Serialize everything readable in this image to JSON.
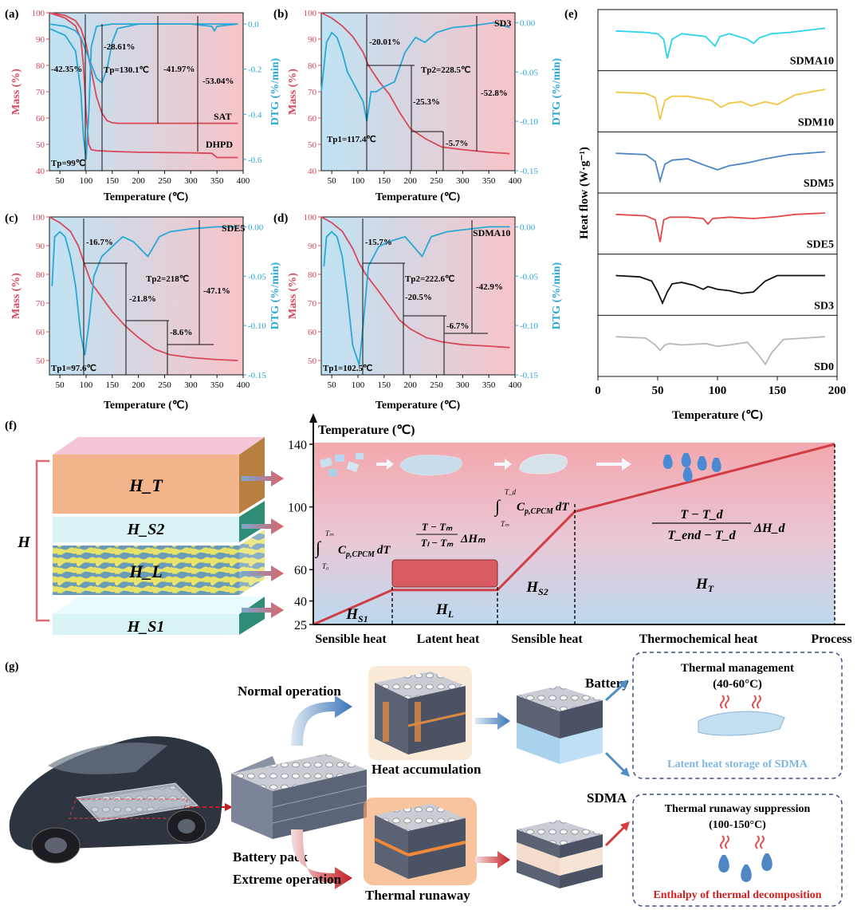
{
  "colors": {
    "mass": "#d9485a",
    "dtg": "#29a8d6",
    "axis": "#111111"
  },
  "chart_data": [
    {
      "panel": "(a)",
      "type": "line",
      "label": "(a)",
      "xlabel": "Temperature (℃)",
      "ylabel": "Mass (%)",
      "y2label": "DTG (%/min)",
      "xlim": [
        30,
        400
      ],
      "ylim": [
        40,
        100
      ],
      "y2lim": [
        -0.65,
        0.05
      ],
      "xticks": [
        "50",
        "100",
        "150",
        "200",
        "250",
        "300",
        "350",
        "400"
      ],
      "yticks": [
        "40",
        "50",
        "60",
        "70",
        "80",
        "90",
        "100"
      ],
      "y2ticks": [
        "0.0",
        "-0.2",
        "-0.4",
        "-0.6"
      ],
      "series": [
        {
          "name": "SAT",
          "axis": "mass",
          "x": [
            30,
            60,
            80,
            90,
            100,
            110,
            120,
            130,
            140,
            150,
            160,
            200,
            250,
            300,
            350,
            390
          ],
          "y": [
            100,
            99,
            97,
            94,
            88,
            78,
            68,
            62,
            59,
            58.2,
            58,
            58,
            58,
            58,
            58,
            58
          ]
        },
        {
          "name": "DHPD",
          "axis": "mass",
          "x": [
            30,
            60,
            80,
            90,
            95,
            100,
            105,
            110,
            120,
            150,
            200,
            300,
            340,
            350,
            390
          ],
          "y": [
            100,
            98,
            95,
            90,
            80,
            62,
            50,
            48,
            47.6,
            47.3,
            47,
            46.8,
            46.6,
            45,
            45
          ]
        },
        {
          "name": "DTG SAT",
          "axis": "dtg",
          "x": [
            30,
            60,
            80,
            90,
            100,
            110,
            120,
            130,
            140,
            150,
            160,
            200,
            300,
            390
          ],
          "y": [
            0,
            -0.01,
            -0.03,
            -0.06,
            -0.12,
            -0.18,
            -0.24,
            -0.26,
            -0.2,
            -0.08,
            -0.02,
            0,
            0,
            0
          ]
        },
        {
          "name": "DTG DHPD",
          "axis": "dtg",
          "x": [
            30,
            60,
            80,
            90,
            95,
            100,
            105,
            110,
            120,
            150,
            300,
            340,
            345,
            350,
            390
          ],
          "y": [
            -0.02,
            -0.05,
            -0.12,
            -0.3,
            -0.5,
            -0.6,
            -0.4,
            -0.1,
            -0.01,
            0,
            0,
            -0.01,
            -0.03,
            -0.01,
            0
          ]
        }
      ],
      "annotations": [
        "-42.35%",
        "-28.61%",
        "Tp=130.1℃",
        "-41.97%",
        "-53.04%",
        "SAT",
        "DHPD",
        "Tp=99℃"
      ]
    },
    {
      "panel": "(b)",
      "type": "line",
      "label": "(b)",
      "xlabel": "Temperature (℃)",
      "ylabel": "Mass (%)",
      "y2label": "DTG (%/min)",
      "xlim": [
        30,
        400
      ],
      "ylim": [
        40,
        100
      ],
      "y2lim": [
        -0.15,
        0.01
      ],
      "xticks": [
        "50",
        "100",
        "150",
        "200",
        "250",
        "300",
        "350",
        "400"
      ],
      "yticks": [
        "40",
        "50",
        "60",
        "70",
        "80",
        "90",
        "100"
      ],
      "y2ticks": [
        "0.00",
        "-0.05",
        "-0.10",
        "-0.15"
      ],
      "series": [
        {
          "name": "SD3 mass",
          "axis": "mass",
          "x": [
            30,
            50,
            70,
            90,
            110,
            120,
            140,
            160,
            180,
            200,
            230,
            260,
            300,
            350,
            390
          ],
          "y": [
            100,
            98,
            95,
            91,
            85,
            80,
            74,
            69,
            62,
            56,
            52,
            49,
            48,
            47,
            46.5
          ]
        },
        {
          "name": "SD3 DTG",
          "axis": "dtg",
          "x": [
            30,
            40,
            50,
            60,
            70,
            80,
            90,
            100,
            110,
            117,
            125,
            135,
            150,
            170,
            190,
            210,
            228,
            250,
            280,
            320,
            360,
            390
          ],
          "y": [
            -0.07,
            -0.02,
            -0.01,
            -0.015,
            -0.03,
            -0.05,
            -0.06,
            -0.07,
            -0.08,
            -0.1,
            -0.07,
            -0.07,
            -0.065,
            -0.06,
            -0.03,
            -0.015,
            -0.02,
            -0.01,
            -0.005,
            -0.003,
            0,
            -0.005
          ]
        }
      ],
      "annotations": [
        "SD3",
        "-20.01%",
        "Tp2=228.5℃",
        "-25.3%",
        "-52.8%",
        "Tp1=117.4℃",
        "-5.7%"
      ]
    },
    {
      "panel": "(c)",
      "type": "line",
      "label": "(c)",
      "xlabel": "Temperature (℃)",
      "ylabel": "Mass (%)",
      "y2label": "DTG (%/min)",
      "xlim": [
        30,
        400
      ],
      "ylim": [
        45,
        100
      ],
      "y2lim": [
        -0.15,
        0.01
      ],
      "xticks": [
        "50",
        "100",
        "150",
        "200",
        "250",
        "300",
        "350",
        "400"
      ],
      "yticks": [
        "50",
        "60",
        "70",
        "80",
        "90",
        "100"
      ],
      "y2ticks": [
        "0.00",
        "-0.05",
        "-0.10",
        "-0.15"
      ],
      "series": [
        {
          "name": "SDE5 mass",
          "axis": "mass",
          "x": [
            30,
            50,
            70,
            85,
            98,
            110,
            130,
            150,
            175,
            200,
            230,
            260,
            300,
            350,
            390
          ],
          "y": [
            100,
            98,
            95,
            90,
            83,
            77,
            72,
            67,
            62,
            58,
            54,
            52,
            51,
            50.3,
            50
          ]
        },
        {
          "name": "SDE5 DTG",
          "axis": "dtg",
          "x": [
            35,
            40,
            50,
            60,
            70,
            80,
            90,
            97.6,
            105,
            115,
            130,
            150,
            170,
            190,
            218,
            240,
            260,
            300,
            350,
            390
          ],
          "y": [
            -0.06,
            -0.01,
            -0.005,
            -0.01,
            -0.03,
            -0.06,
            -0.11,
            -0.13,
            -0.1,
            -0.05,
            -0.03,
            -0.02,
            -0.01,
            -0.015,
            -0.03,
            -0.01,
            -0.005,
            -0.002,
            0,
            0
          ]
        }
      ],
      "annotations": [
        "SDE5",
        "-16.7%",
        "Tp2=218℃",
        "-21.8%",
        "-47.1%",
        "-8.6%",
        "Tp1=97.6℃"
      ]
    },
    {
      "panel": "(d)",
      "type": "line",
      "label": "(d)",
      "xlabel": "Temperature (℃)",
      "ylabel": "Mass (%)",
      "y2label": "DTG (%/min)",
      "xlim": [
        30,
        400
      ],
      "ylim": [
        45,
        100
      ],
      "y2lim": [
        -0.15,
        0.01
      ],
      "xticks": [
        "50",
        "100",
        "150",
        "200",
        "250",
        "300",
        "350",
        "400"
      ],
      "yticks": [
        "50",
        "60",
        "70",
        "80",
        "90",
        "100"
      ],
      "y2ticks": [
        "0.00",
        "-0.05",
        "-0.10",
        "-0.15"
      ],
      "series": [
        {
          "name": "SDMA10 mass",
          "axis": "mass",
          "x": [
            30,
            50,
            70,
            90,
            102,
            115,
            140,
            160,
            180,
            200,
            230,
            260,
            300,
            350,
            390
          ],
          "y": [
            100,
            98,
            95,
            89,
            84,
            80,
            74,
            69,
            64,
            61,
            58,
            56.5,
            55.5,
            55,
            54.5
          ]
        },
        {
          "name": "SDMA10 DTG",
          "axis": "dtg",
          "x": [
            35,
            40,
            50,
            60,
            70,
            80,
            90,
            102.5,
            110,
            120,
            140,
            160,
            190,
            222.6,
            240,
            270,
            300,
            350,
            390
          ],
          "y": [
            -0.04,
            -0.01,
            -0.005,
            -0.01,
            -0.03,
            -0.07,
            -0.12,
            -0.14,
            -0.1,
            -0.04,
            -0.02,
            -0.015,
            -0.01,
            -0.03,
            -0.01,
            -0.005,
            -0.003,
            0,
            0
          ]
        }
      ],
      "annotations": [
        "SDMA10",
        "-15.7%",
        "Tp2=222.6℃",
        "-20.5%",
        "-42.9%",
        "-6.7%",
        "Tp1=102.5℃"
      ]
    },
    {
      "panel": "(e)",
      "type": "line",
      "label": "(e)",
      "xlabel": "Temperature (℃)",
      "ylabel": "Heat flow (W·g⁻¹)",
      "xlim": [
        0,
        200
      ],
      "xticks": [
        "0",
        "50",
        "100",
        "150",
        "200"
      ],
      "series": [
        {
          "name": "SDMA10",
          "color": "#2bd3ee",
          "x": [
            15,
            40,
            50,
            55,
            58,
            62,
            70,
            90,
            98,
            102,
            110,
            125,
            130,
            135,
            145,
            160,
            190
          ],
          "y": [
            0,
            -0.05,
            -0.1,
            -0.3,
            -1,
            -0.3,
            -0.1,
            -0.2,
            -0.55,
            -0.2,
            -0.1,
            -0.3,
            -0.45,
            -0.25,
            -0.1,
            -0.05,
            0.1
          ]
        },
        {
          "name": "SDM10",
          "color": "#f2c644",
          "x": [
            15,
            40,
            48,
            52,
            56,
            62,
            75,
            95,
            103,
            110,
            120,
            128,
            140,
            150,
            165,
            190
          ],
          "y": [
            0,
            -0.05,
            -0.2,
            -1,
            -0.3,
            -0.15,
            -0.15,
            -0.3,
            -0.55,
            -0.4,
            -0.35,
            -0.5,
            -0.35,
            -0.45,
            -0.1,
            0.1
          ]
        },
        {
          "name": "SDM5",
          "color": "#4b86c3",
          "x": [
            15,
            40,
            48,
            52,
            56,
            62,
            75,
            90,
            100,
            110,
            125,
            140,
            160,
            190
          ],
          "y": [
            0,
            -0.05,
            -0.3,
            -1,
            -0.4,
            -0.25,
            -0.2,
            -0.45,
            -0.6,
            -0.45,
            -0.35,
            -0.2,
            -0.05,
            0.05
          ]
        },
        {
          "name": "SDE5",
          "color": "#e24848",
          "x": [
            15,
            40,
            48,
            52,
            55,
            60,
            75,
            88,
            92,
            96,
            110,
            130,
            150,
            165,
            190
          ],
          "y": [
            0,
            -0.05,
            -0.2,
            -1,
            -0.2,
            -0.1,
            -0.1,
            -0.15,
            -0.35,
            -0.15,
            -0.1,
            -0.15,
            -0.08,
            0,
            0.05
          ]
        },
        {
          "name": "SD3",
          "color": "#111111",
          "x": [
            15,
            35,
            45,
            50,
            54,
            58,
            62,
            70,
            80,
            88,
            92,
            100,
            110,
            120,
            130,
            140,
            150,
            190
          ],
          "y": [
            0,
            -0.05,
            -0.2,
            -0.6,
            -1,
            -0.6,
            -0.3,
            -0.25,
            -0.35,
            -0.5,
            -0.4,
            -0.5,
            -0.55,
            -0.65,
            -0.6,
            -0.2,
            0,
            0
          ]
        },
        {
          "name": "SD0",
          "color": "#b8b8b8",
          "x": [
            15,
            40,
            48,
            52,
            56,
            60,
            70,
            90,
            100,
            110,
            125,
            130,
            135,
            140,
            145,
            155,
            190
          ],
          "y": [
            0,
            -0.05,
            -0.3,
            -0.5,
            -0.3,
            -0.25,
            -0.3,
            -0.25,
            -0.35,
            -0.3,
            -0.2,
            -0.45,
            -0.7,
            -1,
            -0.6,
            -0.1,
            0
          ]
        }
      ]
    },
    {
      "panel": "(f)",
      "type": "line",
      "label": "(f)",
      "ylabel": "Temperature (℃)",
      "yticks": [
        "25",
        "40",
        "60",
        "100",
        "140"
      ],
      "x_categories": [
        "Sensible heat",
        "Latent heat",
        "Sensible heat",
        "Thermochemical heat",
        "Process"
      ],
      "x": [
        0,
        1,
        2,
        3,
        6.4
      ],
      "y": [
        25,
        47,
        47,
        97,
        140
      ],
      "regions": [
        "H_S1",
        "H_L",
        "H_S2",
        "H_T"
      ],
      "equations": [
        "∫_{T0}^{Tm} C_{p,CPCM} dT",
        "(T−Tm)/(Tl−Tm) ΔHm",
        "∫_{Tm}^{Td} C_{p,CPCM} dT",
        "(T−Td)/(Tend−Td) ΔHd"
      ]
    }
  ],
  "panel_f": {
    "H": "H",
    "layers": [
      "H_T",
      "H_S2",
      "H_L",
      "H_S1"
    ],
    "regions": {
      "hs1": "H",
      "hs1_sub": "S1",
      "hl": "H",
      "hl_sub": "L",
      "hs2": "H",
      "hs2_sub": "S2",
      "ht": "H",
      "ht_sub": "T"
    },
    "eq": {
      "e1": "∫",
      "e1_lo": "T₀",
      "e1_hi": "Tₘ",
      "e1_body": "C",
      "e1_sub": "p,CPCM",
      "e1_dt": "dT",
      "e2_num": "T − Tₘ",
      "e2_den": "Tₗ − Tₘ",
      "e2_tail": "ΔHₘ",
      "e3": "∫",
      "e3_lo": "Tₘ",
      "e3_hi": "T_d",
      "e3_body": "C",
      "e3_sub": "p,CPCM",
      "e3_dt": "dT",
      "e4_num": "T − T_d",
      "e4_den": "T_end − T_d",
      "e4_tail": "ΔH_d"
    }
  },
  "panel_g": {
    "label": "(g)",
    "normal": "Normal operation",
    "extreme": "Extreme operation",
    "pack": "Battery pack",
    "accum": "Heat accumulation",
    "runaway": "Thermal runaway",
    "battery": "Battery",
    "sdma": "SDMA",
    "box1_title": "Thermal management",
    "box1_range": "(40-60°C)",
    "box1_caption": "Latent heat storage of SDMA",
    "box2_title": "Thermal runaway suppression",
    "box2_range": "(100-150°C)",
    "box2_caption": "Enthalpy of thermal decomposition"
  }
}
